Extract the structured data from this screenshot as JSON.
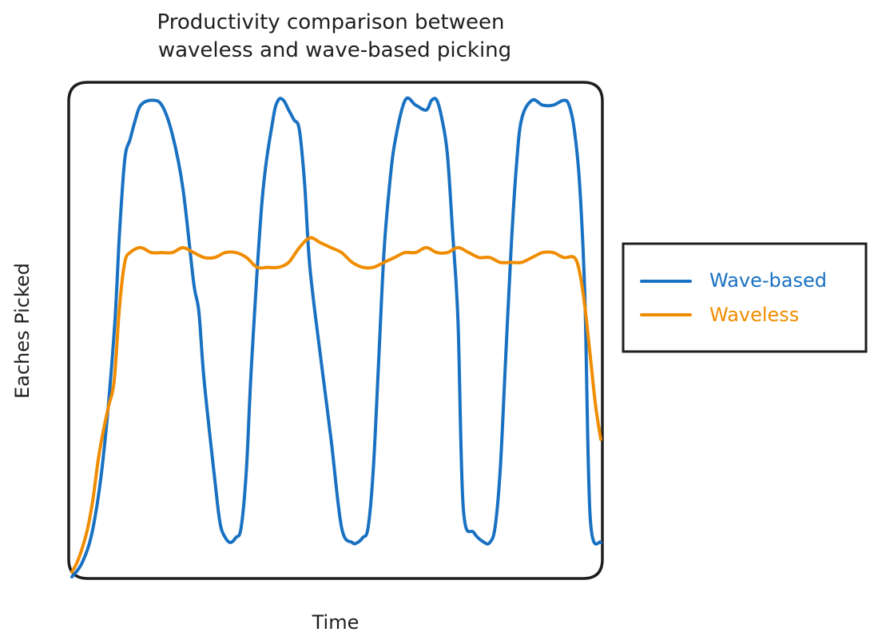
{
  "chart_data": {
    "type": "line",
    "title_lines": [
      "Productivity comparison between",
      "waveless and wave-based picking"
    ],
    "xlabel": "Time",
    "ylabel": "Eaches Picked",
    "legend_position": "right",
    "grid": false,
    "ticks": false,
    "xlim": [
      0,
      100
    ],
    "ylim": [
      0,
      100
    ],
    "series": [
      {
        "name": "Wave-based",
        "color": "#1971c2",
        "x": [
          0,
          2,
          4,
          6,
          8,
          9,
          10,
          11,
          12,
          13,
          15,
          17,
          19,
          21,
          23,
          24,
          25,
          27,
          28,
          29,
          30,
          31,
          32,
          33,
          34,
          36,
          38,
          39,
          40,
          41,
          42,
          43,
          44,
          45,
          47,
          49,
          51,
          53,
          54,
          55,
          56,
          57,
          58,
          59,
          60,
          61,
          63,
          65,
          67,
          68,
          69,
          70,
          71,
          72,
          73,
          74,
          76,
          78,
          79,
          80,
          81,
          82,
          83,
          84,
          85,
          87,
          89,
          91,
          93,
          94,
          95,
          96,
          97,
          98,
          100
        ],
        "y": [
          0,
          3,
          10,
          25,
          50,
          70,
          85,
          89,
          93,
          96,
          97,
          96,
          90,
          79,
          60,
          54,
          40,
          20,
          11,
          8,
          7,
          8,
          10,
          22,
          44,
          77,
          93,
          97,
          97,
          95,
          93,
          91,
          80,
          63,
          45,
          28,
          10,
          7,
          7,
          8,
          10,
          22,
          44,
          66,
          79,
          88,
          97,
          96,
          95,
          97,
          97,
          93,
          86,
          70,
          52,
          14,
          9,
          7,
          7,
          10,
          22,
          44,
          66,
          83,
          93,
          97,
          96,
          96,
          97,
          96,
          91,
          80,
          57,
          12,
          7
        ]
      },
      {
        "name": "Waveless",
        "color": "#f08c00",
        "x": [
          0,
          1,
          2,
          3,
          4,
          5,
          6,
          7,
          8,
          9,
          10,
          11,
          13,
          15,
          17,
          19,
          21,
          23,
          25,
          27,
          29,
          31,
          33,
          35,
          37,
          39,
          41,
          43,
          45,
          47,
          49,
          51,
          53,
          55,
          57,
          59,
          61,
          63,
          65,
          67,
          69,
          71,
          73,
          75,
          77,
          79,
          81,
          83,
          85,
          87,
          89,
          91,
          93,
          95,
          96,
          97,
          98,
          99,
          100
        ],
        "y": [
          1,
          3,
          6,
          10,
          16,
          24,
          30,
          35,
          40,
          55,
          64,
          66,
          67,
          66,
          66,
          66,
          67,
          66,
          65,
          65,
          66,
          66,
          65,
          63,
          63,
          63,
          64,
          67,
          69,
          68,
          67,
          66,
          64,
          63,
          63,
          64,
          65,
          66,
          66,
          67,
          66,
          66,
          67,
          66,
          65,
          65,
          64,
          64,
          64,
          65,
          66,
          66,
          65,
          65,
          62,
          55,
          45,
          35,
          28
        ]
      }
    ]
  }
}
